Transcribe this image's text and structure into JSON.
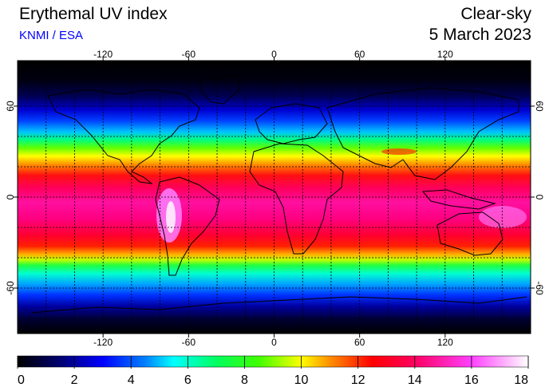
{
  "header": {
    "title": "Erythemal UV index",
    "source": "KNMI / ESA",
    "condition": "Clear-sky",
    "date": "5 March 2023"
  },
  "map": {
    "lon_ticks": [
      "-120",
      "-60",
      "0",
      "60",
      "120"
    ],
    "lat_ticks": [
      "60",
      "0",
      "-60"
    ],
    "lon_tick_values": [
      -120,
      -60,
      0,
      60,
      120
    ],
    "lat_tick_values": [
      60,
      0,
      -60
    ],
    "lon_range": [
      -180,
      180
    ],
    "lat_range": [
      -90,
      90
    ],
    "grid": "dotted, every 20 degrees"
  },
  "colorbar": {
    "labels": [
      "0",
      "2",
      "4",
      "6",
      "8",
      "10",
      "12",
      "14",
      "16",
      "18"
    ],
    "min": 0,
    "max": 18,
    "stops": [
      {
        "v": 0,
        "c": "#000000"
      },
      {
        "v": 1.5,
        "c": "#000070"
      },
      {
        "v": 3,
        "c": "#0000ff"
      },
      {
        "v": 4.5,
        "c": "#0080ff"
      },
      {
        "v": 5.5,
        "c": "#00ffff"
      },
      {
        "v": 7,
        "c": "#00ff60"
      },
      {
        "v": 8.5,
        "c": "#40ff00"
      },
      {
        "v": 10,
        "c": "#ffff00"
      },
      {
        "v": 11,
        "c": "#ff9000"
      },
      {
        "v": 12.5,
        "c": "#ff0000"
      },
      {
        "v": 14,
        "c": "#ff0060"
      },
      {
        "v": 16,
        "c": "#ff40ff"
      },
      {
        "v": 18,
        "c": "#ffffff"
      }
    ]
  }
}
